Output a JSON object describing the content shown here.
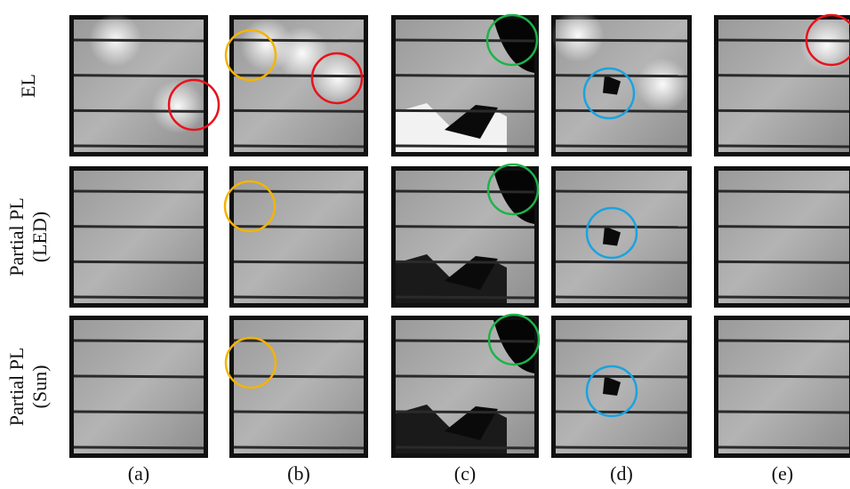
{
  "rows": [
    {
      "lines": [
        "EL"
      ]
    },
    {
      "lines": [
        "Partial PL",
        "(LED)"
      ]
    },
    {
      "lines": [
        "Partial PL",
        "(Sun)"
      ]
    }
  ],
  "columns": [
    "(a)",
    "(b)",
    "(c)",
    "(d)",
    "(e)"
  ]
}
